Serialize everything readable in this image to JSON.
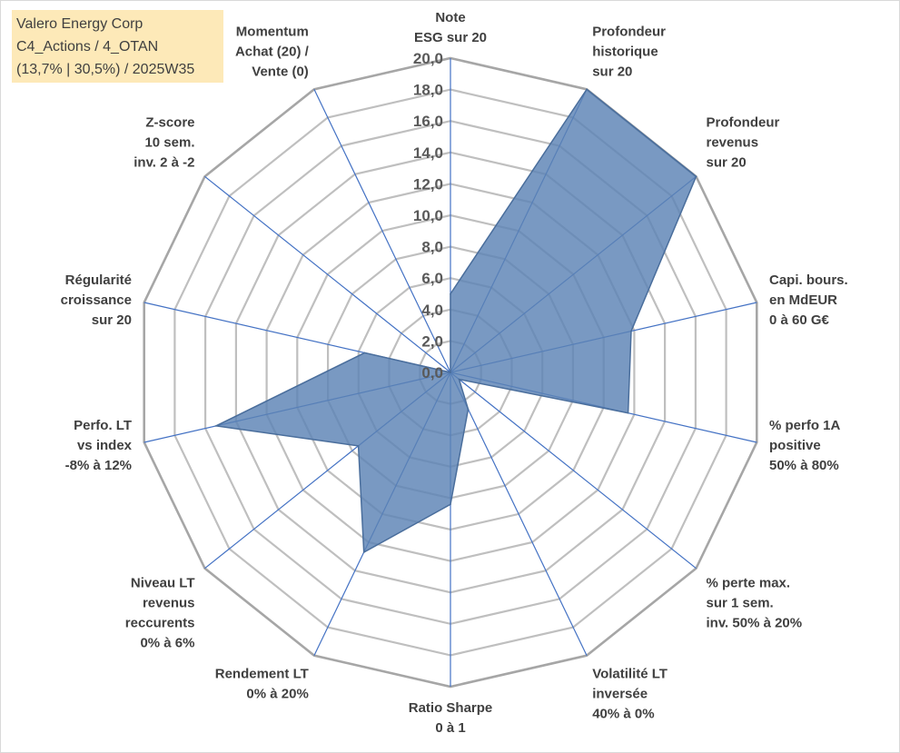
{
  "title_box": {
    "line1": "Valero Energy Corp",
    "line2": "C4_Actions / 4_OTAN",
    "line3": "(13,7% | 30,5%) / 2025W35"
  },
  "chart_data": {
    "type": "radar",
    "r_range": [
      0,
      20
    ],
    "r_ticks": [
      "0,0",
      "2,0",
      "4,0",
      "6,0",
      "8,0",
      "10,0",
      "12,0",
      "14,0",
      "16,0",
      "18,0",
      "20,0"
    ],
    "grid": true,
    "legend": "none",
    "axes": [
      [
        "Note",
        "ESG sur 20"
      ],
      [
        "Profondeur",
        "historique",
        "sur 20"
      ],
      [
        "Profondeur",
        "revenus",
        "sur 20"
      ],
      [
        "Capi. bours.",
        "en MdEUR",
        "0 à 60 G€"
      ],
      [
        "% perfo 1A",
        "positive",
        "50% à 80%"
      ],
      [
        "% perte max.",
        "sur 1 sem.",
        "inv. 50% à 20%"
      ],
      [
        "Volatilité LT",
        "inversée",
        "40% à 0%"
      ],
      [
        "Ratio Sharpe",
        "0 à 1"
      ],
      [
        "Rendement LT",
        "0% à 20%"
      ],
      [
        "Niveau LT",
        "revenus",
        "reccurents",
        "0% à 6%"
      ],
      [
        "Perfo. LT",
        "vs index",
        "-8% à 12%"
      ],
      [
        "Régularité",
        "croissance",
        "sur 20"
      ],
      [
        "Z-score",
        "10 sem.",
        "inv. 2 à -2"
      ],
      [
        "Momentum",
        "Achat (20) /",
        "Vente (0)"
      ]
    ],
    "values": [
      5.0,
      20.0,
      20.0,
      11.8,
      11.6,
      0.7,
      2.6,
      8.4,
      12.7,
      7.5,
      15.3,
      5.6,
      0.0,
      0.0
    ],
    "colors": {
      "fill": "#5b83b5",
      "fill_opacity": 0.82,
      "stroke": "#4a6e9c",
      "axis_line": "#4472c4",
      "grid": "#bfbfbf",
      "outer_grid": "#a6a6a6"
    }
  }
}
